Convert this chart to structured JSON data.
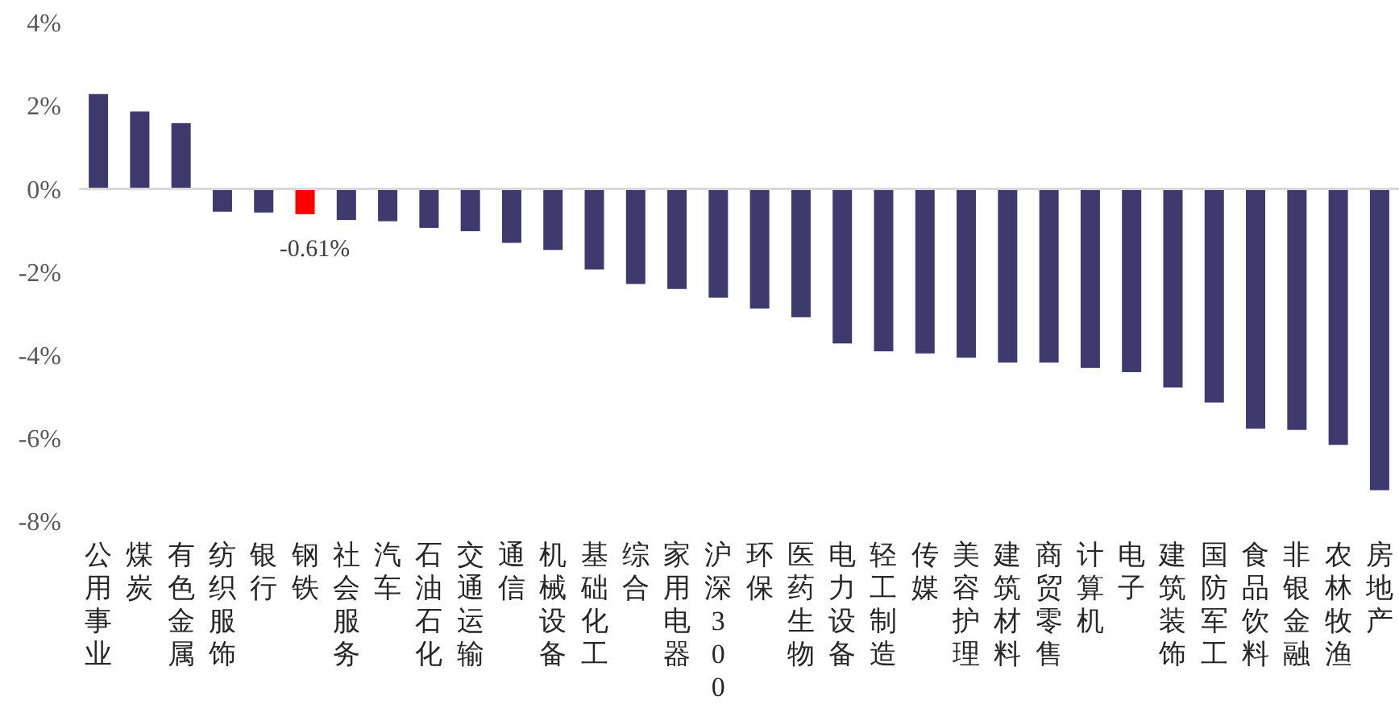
{
  "chart_data": {
    "type": "bar",
    "categories": [
      "公用事业",
      "煤炭",
      "有色金属",
      "纺织服饰",
      "银行",
      "钢铁",
      "社会服务",
      "汽车",
      "石油石化",
      "交通运输",
      "通信",
      "机械设备",
      "基础化工",
      "综合",
      "家用电器",
      "沪深300",
      "环保",
      "医药生物",
      "电力设备",
      "轻工制造",
      "传媒",
      "美容护理",
      "建筑材料",
      "商贸零售",
      "计算机",
      "电子",
      "建筑装饰",
      "国防军工",
      "食品饮料",
      "非银金融",
      "农林牧渔",
      "房地产"
    ],
    "values": [
      2.28,
      1.86,
      1.58,
      -0.55,
      -0.57,
      -0.61,
      -0.75,
      -0.78,
      -0.94,
      -1.02,
      -1.3,
      -1.47,
      -1.94,
      -2.29,
      -2.41,
      -2.62,
      -2.88,
      -3.09,
      -3.72,
      -3.91,
      -3.96,
      -4.06,
      -4.18,
      -4.18,
      -4.31,
      -4.41,
      -4.78,
      -5.14,
      -5.77,
      -5.8,
      -6.16,
      -7.25
    ],
    "colors": [
      "#3f3a6e",
      "#3f3a6e",
      "#3f3a6e",
      "#3f3a6e",
      "#3f3a6e",
      "#ff0000",
      "#3f3a6e",
      "#3f3a6e",
      "#3f3a6e",
      "#3f3a6e",
      "#3f3a6e",
      "#3f3a6e",
      "#3f3a6e",
      "#3f3a6e",
      "#3f3a6e",
      "#3f3a6e",
      "#3f3a6e",
      "#3f3a6e",
      "#3f3a6e",
      "#3f3a6e",
      "#3f3a6e",
      "#3f3a6e",
      "#3f3a6e",
      "#3f3a6e",
      "#3f3a6e",
      "#3f3a6e",
      "#3f3a6e",
      "#3f3a6e",
      "#3f3a6e",
      "#3f3a6e",
      "#3f3a6e",
      "#3f3a6e"
    ],
    "value_labels": [
      null,
      null,
      null,
      null,
      null,
      "-0.61%",
      null,
      null,
      null,
      null,
      null,
      null,
      null,
      null,
      null,
      null,
      null,
      null,
      null,
      null,
      null,
      null,
      null,
      null,
      null,
      null,
      null,
      null,
      null,
      null,
      null,
      null
    ],
    "ylim": [
      -8,
      4
    ],
    "yticks": [
      {
        "value": 4,
        "label": "4%"
      },
      {
        "value": 2,
        "label": "2%"
      },
      {
        "value": 0,
        "label": "0%"
      },
      {
        "value": -2,
        "label": "-2%"
      },
      {
        "value": -4,
        "label": "-4%"
      },
      {
        "value": -6,
        "label": "-6%"
      },
      {
        "value": -8,
        "label": "-8%"
      }
    ]
  }
}
